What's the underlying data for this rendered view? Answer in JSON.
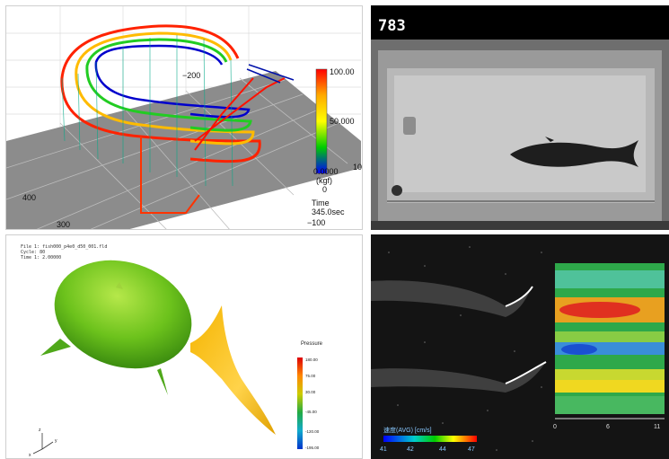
{
  "panel_force": {
    "axis_labels": {
      "y_left_1": "400",
      "y_left_2": "300",
      "top_tick": "−200",
      "right_tick_1": "10",
      "right_tick_2": "0",
      "bottom_tick": "−100"
    },
    "colorbar": {
      "max": "100.00",
      "mid": "50.000",
      "min": "0.0000",
      "unit": "(kgf)",
      "colors": [
        "#ff0000",
        "#ffaa00",
        "#ffff00",
        "#00cc00",
        "#0000ff"
      ]
    },
    "time_label": "Time",
    "time_value": "345.0sec"
  },
  "panel_video": {
    "frame_counter": "783"
  },
  "panel_pressure": {
    "header_lines": [
      "File 1: fish000_p4e0_d50_001.fld",
      "Cycle: 80",
      "Time 1: 2.00000"
    ],
    "colorbar_title": "Pressure",
    "colorbar_ticks": [
      "180.00",
      "75.00",
      "30.00",
      "-45.00",
      "-120.00",
      "-195.00"
    ],
    "axis_labels": {
      "z": "z",
      "x": "x",
      "y": "y"
    }
  },
  "panel_flow": {
    "legend_title": "速度(AVG) [cm/s]",
    "legend_ticks": [
      "41",
      "42",
      "44",
      "47"
    ],
    "axis_ticks": [
      "0",
      "6",
      "11"
    ]
  }
}
